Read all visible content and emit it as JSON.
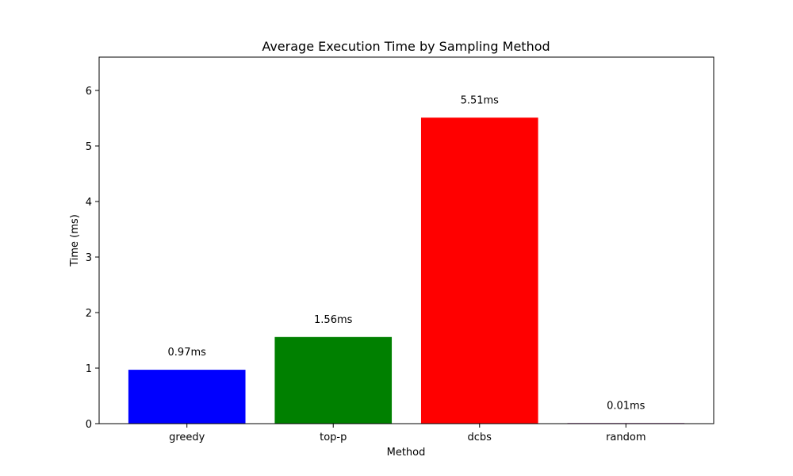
{
  "chart_data": {
    "type": "bar",
    "title": "Average Execution Time by Sampling Method",
    "xlabel": "Method",
    "ylabel": "Time (ms)",
    "categories": [
      "greedy",
      "top-p",
      "dcbs",
      "random"
    ],
    "values": [
      0.97,
      1.56,
      5.51,
      0.01
    ],
    "value_labels": [
      "0.97ms",
      "1.56ms",
      "5.51ms",
      "0.01ms"
    ],
    "colors": [
      "#0000ff",
      "#008000",
      "#ff0000",
      "#800080"
    ],
    "ylim": [
      0,
      6.6
    ],
    "yticks": [
      0,
      1,
      2,
      3,
      4,
      5,
      6
    ],
    "grid": false,
    "legend": "none"
  }
}
